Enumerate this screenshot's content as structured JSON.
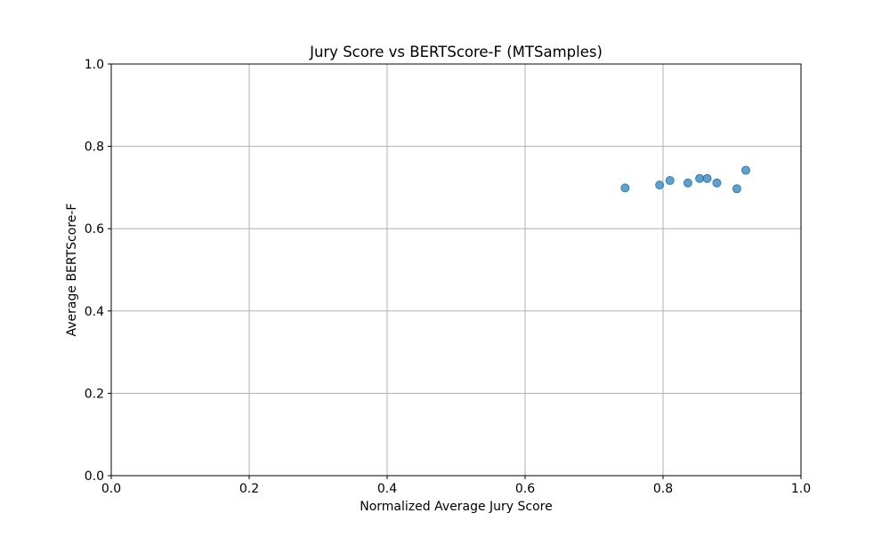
{
  "chart_data": {
    "type": "scatter",
    "title": "Jury Score vs BERTScore-F (MTSamples)",
    "xlabel": "Normalized Average Jury Score",
    "ylabel": "Average BERTScore-F",
    "xlim": [
      0,
      1
    ],
    "ylim": [
      0,
      1
    ],
    "xticks": [
      "0.0",
      "0.2",
      "0.4",
      "0.6",
      "0.8",
      "1.0"
    ],
    "yticks": [
      "0.0",
      "0.2",
      "0.4",
      "0.6",
      "0.8",
      "1.0"
    ],
    "grid": true,
    "point_color": "#1f77b4",
    "series": [
      {
        "x": [
          0.745,
          0.795,
          0.81,
          0.836,
          0.853,
          0.864,
          0.878,
          0.907,
          0.92
        ],
        "y": [
          0.699,
          0.706,
          0.717,
          0.711,
          0.722,
          0.722,
          0.711,
          0.697,
          0.742
        ]
      }
    ]
  }
}
